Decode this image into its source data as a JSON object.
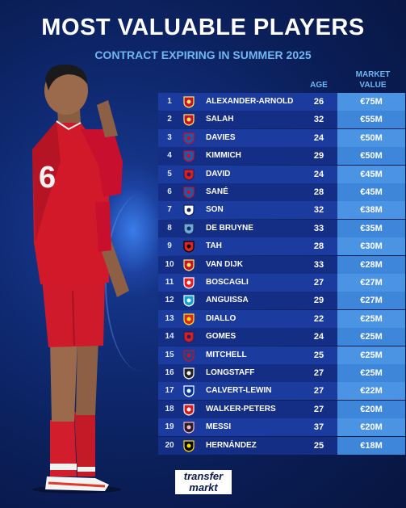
{
  "header": {
    "title": "MOST VALUABLE PLAYERS",
    "subtitle": "CONTRACT EXPIRING IN SUMMER 2025"
  },
  "columns": {
    "age": "AGE",
    "market_value_line1": "MARKET",
    "market_value_line2": "VALUE"
  },
  "rows": [
    {
      "rank": "1",
      "name": "ALEXANDER-ARNOLD",
      "age": "26",
      "value": "€75M",
      "club_icon": "liverpool-crest-icon"
    },
    {
      "rank": "2",
      "name": "SALAH",
      "age": "32",
      "value": "€55M",
      "club_icon": "liverpool-crest-icon"
    },
    {
      "rank": "3",
      "name": "DAVIES",
      "age": "24",
      "value": "€50M",
      "club_icon": "bayern-crest-icon"
    },
    {
      "rank": "4",
      "name": "KIMMICH",
      "age": "29",
      "value": "€50M",
      "club_icon": "bayern-crest-icon"
    },
    {
      "rank": "5",
      "name": "DAVID",
      "age": "24",
      "value": "€45M",
      "club_icon": "lille-crest-icon"
    },
    {
      "rank": "6",
      "name": "SANÉ",
      "age": "28",
      "value": "€45M",
      "club_icon": "bayern-crest-icon"
    },
    {
      "rank": "7",
      "name": "SON",
      "age": "32",
      "value": "€38M",
      "club_icon": "tottenham-crest-icon"
    },
    {
      "rank": "8",
      "name": "DE BRUYNE",
      "age": "33",
      "value": "€35M",
      "club_icon": "man-city-crest-icon"
    },
    {
      "rank": "9",
      "name": "TAH",
      "age": "28",
      "value": "€30M",
      "club_icon": "leverkusen-crest-icon"
    },
    {
      "rank": "10",
      "name": "VAN DIJK",
      "age": "33",
      "value": "€28M",
      "club_icon": "liverpool-crest-icon"
    },
    {
      "rank": "11",
      "name": "BOSCAGLI",
      "age": "27",
      "value": "€27M",
      "club_icon": "psv-crest-icon"
    },
    {
      "rank": "12",
      "name": "ANGUISSA",
      "age": "29",
      "value": "€27M",
      "club_icon": "napoli-crest-icon"
    },
    {
      "rank": "13",
      "name": "DIALLO",
      "age": "22",
      "value": "€25M",
      "club_icon": "man-united-crest-icon"
    },
    {
      "rank": "14",
      "name": "GOMES",
      "age": "24",
      "value": "€25M",
      "club_icon": "lille-crest-icon"
    },
    {
      "rank": "15",
      "name": "MITCHELL",
      "age": "25",
      "value": "€25M",
      "club_icon": "crystal-palace-crest-icon"
    },
    {
      "rank": "16",
      "name": "LONGSTAFF",
      "age": "27",
      "value": "€25M",
      "club_icon": "newcastle-crest-icon"
    },
    {
      "rank": "17",
      "name": "CALVERT-LEWIN",
      "age": "27",
      "value": "€22M",
      "club_icon": "everton-crest-icon"
    },
    {
      "rank": "18",
      "name": "WALKER-PETERS",
      "age": "27",
      "value": "€20M",
      "club_icon": "southampton-crest-icon"
    },
    {
      "rank": "19",
      "name": "MESSI",
      "age": "37",
      "value": "€20M",
      "club_icon": "inter-miami-crest-icon"
    },
    {
      "rank": "20",
      "name": "HERNÁNDEZ",
      "age": "25",
      "value": "€18M",
      "club_icon": "columbus-crest-icon"
    }
  ],
  "brand": {
    "line1": "transfer",
    "line2": "markt"
  },
  "colors": {
    "background": "#0f2a72",
    "accent": "#6fb6f2",
    "row_odd": "#1b3b9e",
    "row_even": "#142e86",
    "value_cell": "#4b93e3",
    "kit_red": "#c8102e"
  }
}
